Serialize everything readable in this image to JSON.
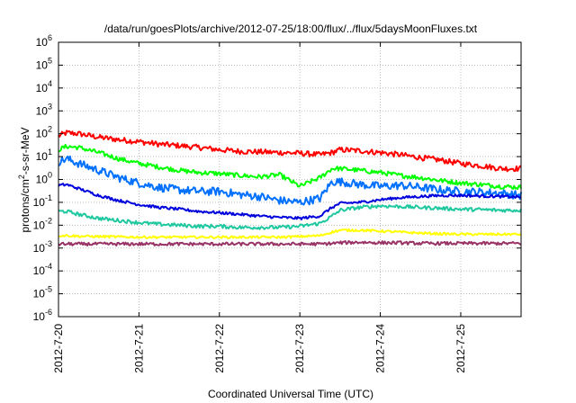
{
  "chart_data": {
    "type": "line",
    "title": "/data/run/goesPlots/archive/2012-07-25/18:00/flux/../flux/5daysMoonFluxes.txt",
    "xlabel": "Coordinated Universal Time (UTC)",
    "ylabel": {
      "base": "protons/cm",
      "sup": "2",
      "rest": "-s-sr-MeV"
    },
    "y_scale": "log",
    "ylim": [
      1e-06,
      1000000.0
    ],
    "xlim": [
      "2012-07-20",
      "2012-07-25 18:00"
    ],
    "grid": true,
    "legend": "none",
    "x_tick_labels": [
      "2012-7-20",
      "2012-7-21",
      "2012-7-22",
      "2012-7-23",
      "2012-7-24",
      "2012-7-25"
    ],
    "y_tick_labels": [
      {
        "base": "10",
        "exp": "-6"
      },
      {
        "base": "10",
        "exp": "-5"
      },
      {
        "base": "10",
        "exp": "-4"
      },
      {
        "base": "10",
        "exp": "-3"
      },
      {
        "base": "10",
        "exp": "-2"
      },
      {
        "base": "10",
        "exp": "-1"
      },
      {
        "base": "10",
        "exp": "0"
      },
      {
        "base": "10",
        "exp": "1"
      },
      {
        "base": "10",
        "exp": "2"
      },
      {
        "base": "10",
        "exp": "3"
      },
      {
        "base": "10",
        "exp": "4"
      },
      {
        "base": "10",
        "exp": "5"
      },
      {
        "base": "10",
        "exp": "6"
      }
    ],
    "x_days": [
      0,
      0.1,
      0.25,
      0.5,
      0.75,
      1.0,
      1.25,
      1.5,
      1.75,
      2.0,
      2.25,
      2.5,
      2.75,
      3.0,
      3.25,
      3.4,
      3.5,
      3.75,
      4.0,
      4.25,
      4.5,
      4.75,
      5.0,
      5.25,
      5.5,
      5.75
    ],
    "series": [
      {
        "color": "#ff0000",
        "noise": 0.12,
        "values": [
          80,
          110,
          100,
          70,
          55,
          45,
          35,
          30,
          25,
          20,
          17,
          16,
          15,
          14,
          12,
          15,
          20,
          18,
          15,
          12,
          9,
          7,
          5,
          4,
          3,
          3
        ]
      },
      {
        "color": "#00ff00",
        "noise": 0.1,
        "values": [
          20,
          28,
          25,
          15,
          8,
          5,
          3.5,
          2.5,
          2.0,
          1.8,
          1.5,
          1.3,
          1.6,
          0.5,
          1.2,
          3,
          3,
          2.5,
          2.0,
          1.5,
          1.2,
          0.9,
          0.7,
          0.6,
          0.5,
          0.45
        ]
      },
      {
        "color": "#0070ff",
        "noise": 0.18,
        "values": [
          6,
          8,
          5,
          2.5,
          1.2,
          0.7,
          0.45,
          0.35,
          0.3,
          0.3,
          0.22,
          0.18,
          0.12,
          0.1,
          0.15,
          0.8,
          0.8,
          0.6,
          0.5,
          0.55,
          0.45,
          0.35,
          0.3,
          0.28,
          0.25,
          0.2
        ]
      },
      {
        "color": "#0000dd",
        "noise": 0.06,
        "values": [
          0.55,
          0.6,
          0.4,
          0.2,
          0.12,
          0.08,
          0.06,
          0.05,
          0.04,
          0.035,
          0.03,
          0.025,
          0.022,
          0.02,
          0.025,
          0.06,
          0.09,
          0.1,
          0.13,
          0.16,
          0.18,
          0.2,
          0.2,
          0.19,
          0.18,
          0.17
        ]
      },
      {
        "color": "#20c8a0",
        "noise": 0.08,
        "values": [
          0.04,
          0.04,
          0.03,
          0.02,
          0.016,
          0.013,
          0.011,
          0.01,
          0.009,
          0.009,
          0.008,
          0.008,
          0.008,
          0.009,
          0.012,
          0.025,
          0.045,
          0.06,
          0.07,
          0.065,
          0.06,
          0.055,
          0.05,
          0.048,
          0.045,
          0.045
        ]
      },
      {
        "color": "#ffff00",
        "noise": 0.05,
        "values": [
          0.0035,
          0.0035,
          0.0033,
          0.0032,
          0.0031,
          0.003,
          0.003,
          0.003,
          0.003,
          0.003,
          0.003,
          0.003,
          0.003,
          0.0032,
          0.0035,
          0.005,
          0.006,
          0.006,
          0.0055,
          0.005,
          0.0045,
          0.0042,
          0.004,
          0.004,
          0.004,
          0.004
        ]
      },
      {
        "color": "#993366",
        "noise": 0.07,
        "values": [
          0.0015,
          0.0015,
          0.0015,
          0.0015,
          0.0015,
          0.0015,
          0.0015,
          0.0015,
          0.0015,
          0.0015,
          0.0015,
          0.0015,
          0.0015,
          0.0015,
          0.0015,
          0.0016,
          0.0017,
          0.0018,
          0.0017,
          0.0017,
          0.0016,
          0.0016,
          0.0016,
          0.0016,
          0.0016,
          0.0016
        ]
      }
    ]
  }
}
